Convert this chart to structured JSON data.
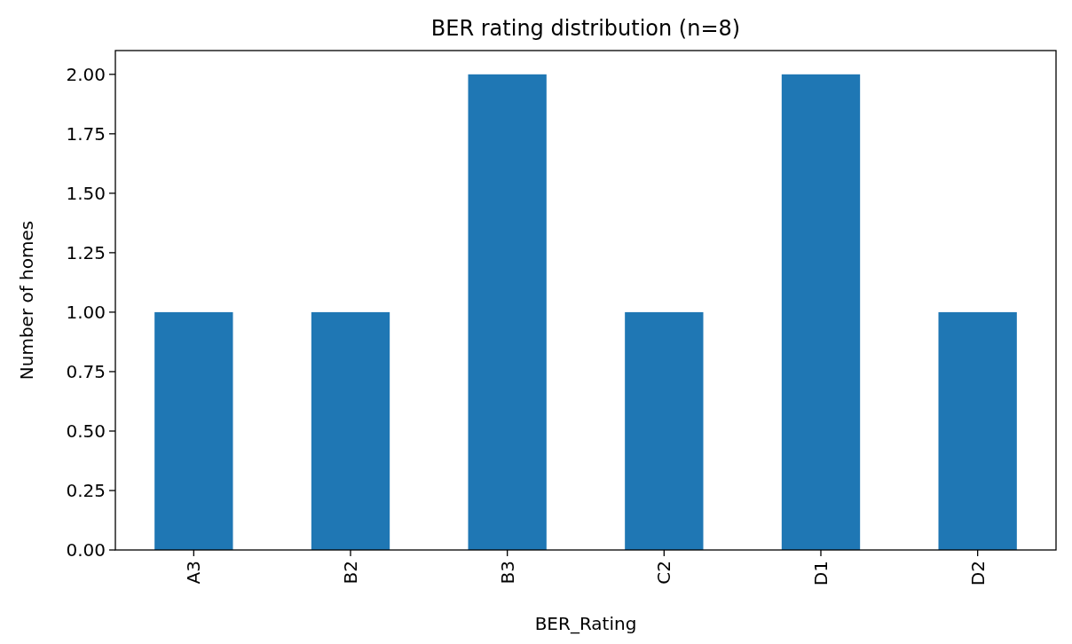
{
  "chart_data": {
    "type": "bar",
    "title": "BER rating distribution (n=8)",
    "xlabel": "BER_Rating",
    "ylabel": "Number of homes",
    "categories": [
      "A3",
      "B2",
      "B3",
      "C2",
      "D1",
      "D2"
    ],
    "values": [
      1,
      1,
      2,
      1,
      2,
      1
    ],
    "color": "#1f77b4",
    "ylim": [
      0,
      2.1
    ],
    "yticks": [
      {
        "value": 0,
        "label": "0.00"
      },
      {
        "value": 0.25,
        "label": "0.25"
      },
      {
        "value": 0.5,
        "label": "0.50"
      },
      {
        "value": 0.75,
        "label": "0.75"
      },
      {
        "value": 1,
        "label": "1.00"
      },
      {
        "value": 1.25,
        "label": "1.25"
      },
      {
        "value": 1.5,
        "label": "1.50"
      },
      {
        "value": 1.75,
        "label": "1.75"
      },
      {
        "value": 2,
        "label": "2.00"
      }
    ],
    "grid": false
  }
}
